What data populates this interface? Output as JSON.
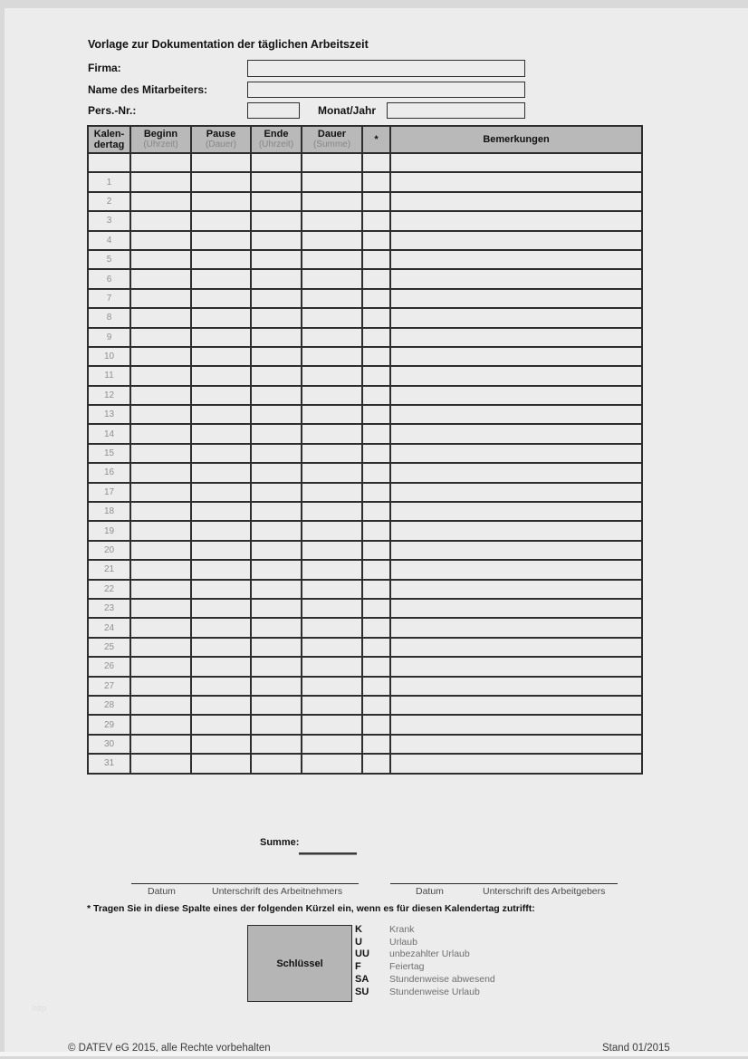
{
  "page": {
    "watermark": "http"
  },
  "header": {
    "title": "Vorlage zur Dokumentation der täglichen Arbeitszeit"
  },
  "form": {
    "firma_label": "Firma:",
    "firma_value": "",
    "name_label": "Name des Mitarbeiters:",
    "name_value": "",
    "persnr_label": "Pers.-Nr.:",
    "persnr_value": "",
    "monat_label": "Monat/Jahr",
    "monat_value": ""
  },
  "table": {
    "columns": [
      {
        "key": "kalendertag",
        "label": "Kalen-",
        "label2": "dertag",
        "sub": ""
      },
      {
        "key": "beginn",
        "label": "Beginn",
        "sub": "(Uhrzeit)"
      },
      {
        "key": "pause",
        "label": "Pause",
        "sub": "(Dauer)"
      },
      {
        "key": "ende",
        "label": "Ende",
        "sub": "(Uhrzeit)"
      },
      {
        "key": "dauer",
        "label": "Dauer",
        "sub": "(Summe)"
      },
      {
        "key": "kuerzel",
        "label": "*",
        "sub": ""
      },
      {
        "key": "bemerkungen",
        "label": "Bemerkungen",
        "sub": ""
      }
    ],
    "days": [
      "",
      "1",
      "2",
      "3",
      "4",
      "5",
      "6",
      "7",
      "8",
      "9",
      "10",
      "11",
      "12",
      "13",
      "14",
      "15",
      "16",
      "17",
      "18",
      "19",
      "20",
      "21",
      "22",
      "23",
      "24",
      "25",
      "26",
      "27",
      "28",
      "29",
      "30",
      "31"
    ]
  },
  "summary": {
    "label": "Summe:",
    "value": ""
  },
  "signatures": {
    "left": {
      "datum": "Datum",
      "unterschrift": "Unterschrift des Arbeitnehmers"
    },
    "right": {
      "datum": "Datum",
      "unterschrift": "Unterschrift des Arbeitgebers"
    }
  },
  "footnote": {
    "text": "* Tragen Sie in diese Spalte eines der folgenden Kürzel ein, wenn es für diesen Kalendertag zutrifft:"
  },
  "legend": {
    "box_label": "Schlüssel",
    "entries": [
      {
        "code": "K",
        "label": "Krank"
      },
      {
        "code": "U",
        "label": "Urlaub"
      },
      {
        "code": "UU",
        "label": "unbezahlter Urlaub"
      },
      {
        "code": "F",
        "label": "Feiertag"
      },
      {
        "code": "SA",
        "label": "Stundenweise abwesend"
      },
      {
        "code": "SU",
        "label": "Stundenweise Urlaub"
      }
    ]
  },
  "footer": {
    "left": "© DATEV eG 2015, alle Rechte vorbehalten",
    "right": "Stand 01/2015"
  },
  "colors": {
    "page_bg": "#ececec",
    "frame_edge": "#d9d9d9",
    "header_bg": "#b9b9b9",
    "key_box_bg": "#b5b5b5",
    "grid_border": "#2e2e2e",
    "muted_text": "#8f8f8f",
    "legend_text": "#6f6f6f",
    "sig_text": "#4a4a4a",
    "footer_text": "#3c3c3c",
    "watermark_text": "#dedede"
  }
}
